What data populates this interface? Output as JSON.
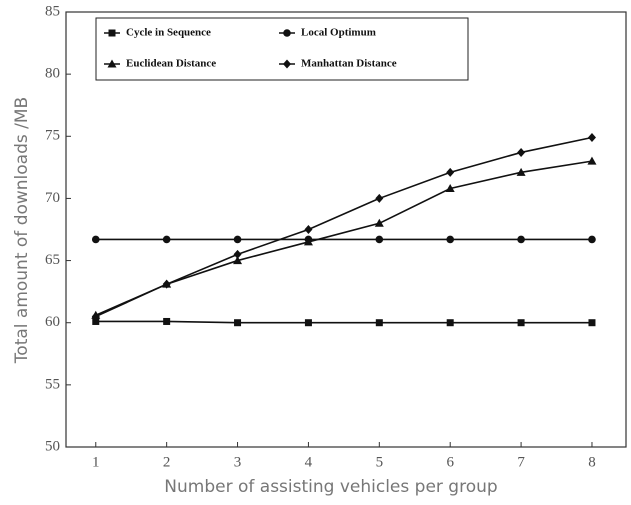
{
  "chart_data": {
    "type": "line",
    "x_label": "Number of assisting vehicles per group",
    "y_label": "Total amount of downloads /MB",
    "x": [
      1,
      2,
      3,
      4,
      5,
      6,
      7,
      8
    ],
    "xlim": [
      0.58,
      8.48
    ],
    "xticks": [
      1,
      2,
      3,
      4,
      5,
      6,
      7,
      8
    ],
    "ylim": [
      50,
      85
    ],
    "yticks": [
      50,
      55,
      60,
      65,
      70,
      75,
      80,
      85
    ],
    "series": [
      {
        "name": "Cycle in Sequence",
        "color": "#111",
        "marker": "square",
        "values": [
          60.1,
          60.1,
          60.0,
          60.0,
          60.0,
          60.0,
          60.0,
          60.0
        ]
      },
      {
        "name": "Local Optimum",
        "color": "#111",
        "marker": "circle",
        "values": [
          66.7,
          66.7,
          66.7,
          66.7,
          66.7,
          66.7,
          66.7,
          66.7
        ]
      },
      {
        "name": "Euclidean Distance",
        "color": "#111",
        "marker": "triangle",
        "values": [
          60.6,
          63.1,
          65.0,
          66.5,
          68.0,
          70.8,
          72.1,
          73.0
        ]
      },
      {
        "name": "Manhattan Distance",
        "color": "#111",
        "marker": "diamond",
        "values": [
          60.5,
          63.1,
          65.5,
          67.5,
          70.0,
          72.1,
          73.7,
          74.9
        ]
      }
    ]
  }
}
